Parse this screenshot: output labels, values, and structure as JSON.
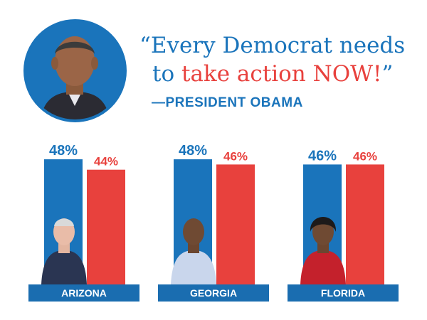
{
  "quote": {
    "open_mark": "“",
    "line1": "Every Democrat needs",
    "line2_pre": "to ",
    "line2_highlight": "take action NOW!",
    "close_mark": "”",
    "attribution": "—PRESIDENT OBAMA"
  },
  "colors": {
    "blue": "#1a74bb",
    "red": "#e8413d",
    "label_bg": "#1a6db0"
  },
  "chart_data": {
    "type": "bar",
    "categories": [
      "ARIZONA",
      "GEORGIA",
      "FLORIDA"
    ],
    "series": [
      {
        "values": [
          48,
          48,
          46
        ],
        "labels": [
          "48%",
          "48%",
          "46%"
        ],
        "color": "#1a74bb"
      },
      {
        "values": [
          44,
          46,
          46
        ],
        "labels": [
          "44%",
          "46%",
          "46%"
        ],
        "color": "#e8413d"
      }
    ],
    "title": "",
    "xlabel": "",
    "ylabel": "",
    "ylim": [
      0,
      48
    ],
    "grid": false
  }
}
